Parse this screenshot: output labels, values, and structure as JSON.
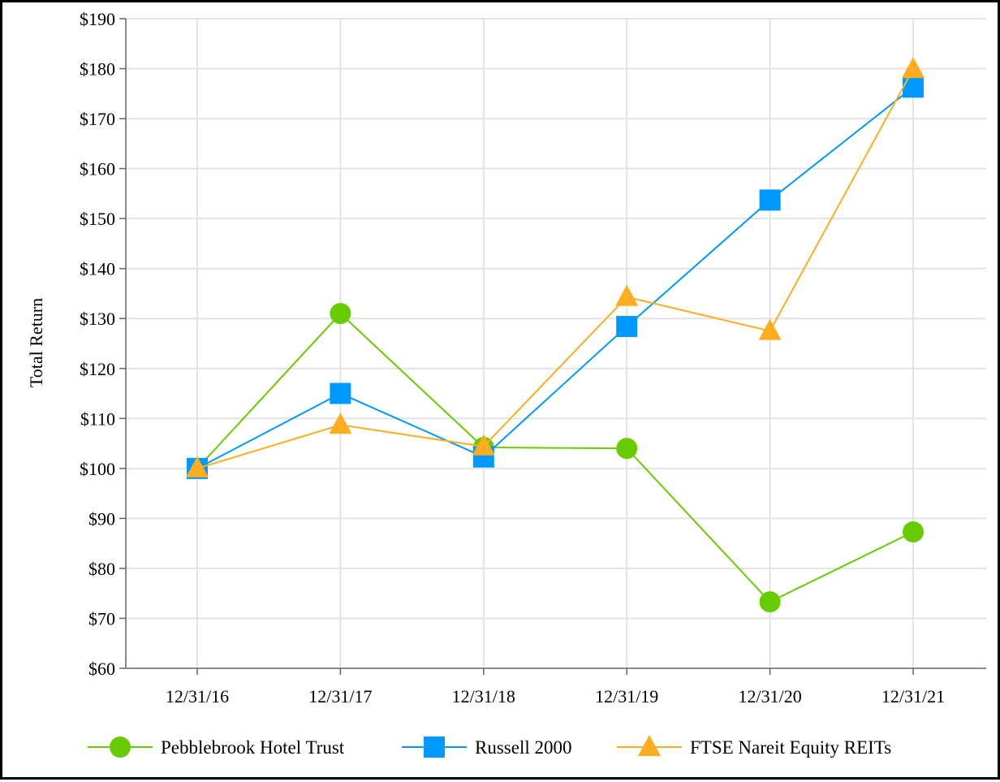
{
  "chart_data": {
    "type": "line",
    "title": "",
    "xlabel": "",
    "ylabel": "Total Return",
    "categories": [
      "12/31/16",
      "12/31/17",
      "12/31/18",
      "12/31/19",
      "12/31/20",
      "12/31/21"
    ],
    "ylim": [
      60,
      190
    ],
    "yticks": [
      60,
      70,
      80,
      90,
      100,
      110,
      120,
      130,
      140,
      150,
      160,
      170,
      180,
      190
    ],
    "ytick_labels": [
      "$60",
      "$70",
      "$80",
      "$90",
      "$100",
      "$110",
      "$120",
      "$130",
      "$140",
      "$150",
      "$160",
      "$170",
      "$180",
      "$190"
    ],
    "grid": true,
    "legend_position": "bottom",
    "series": [
      {
        "name": "Pebblebrook Hotel Trust",
        "values": [
          100.0,
          131.0,
          104.2,
          104.0,
          73.3,
          87.3
        ],
        "color": "#66cc00",
        "marker": "circle"
      },
      {
        "name": "Russell 2000",
        "values": [
          100.0,
          115.0,
          102.3,
          128.4,
          153.7,
          176.3
        ],
        "color": "#0099ff",
        "marker": "square"
      },
      {
        "name": "FTSE Nareit Equity REITs",
        "values": [
          100.0,
          108.7,
          104.4,
          134.3,
          127.5,
          179.9
        ],
        "color": "#ffad1f",
        "marker": "triangle"
      }
    ]
  }
}
